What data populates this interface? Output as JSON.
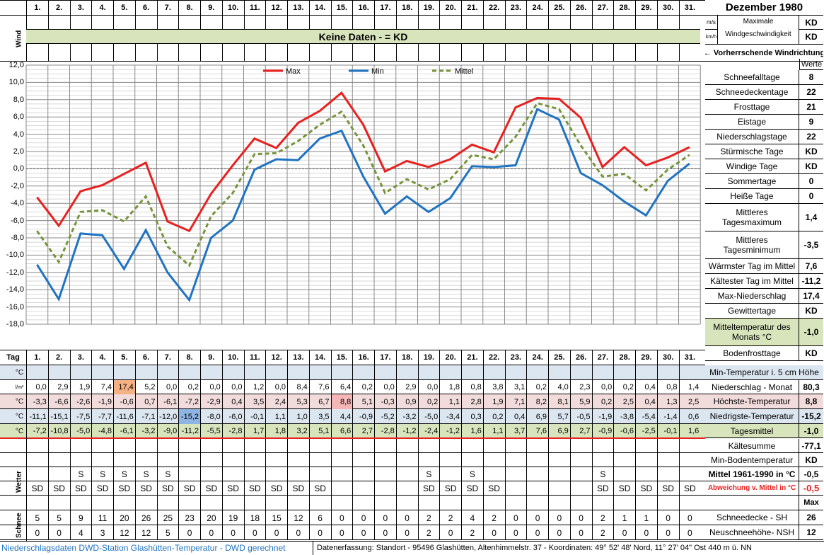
{
  "title": "Dezember 1980",
  "days": [
    "1.",
    "2.",
    "3.",
    "4.",
    "5.",
    "6.",
    "7.",
    "8.",
    "9.",
    "10.",
    "11.",
    "12.",
    "13.",
    "14.",
    "15.",
    "16.",
    "17.",
    "18.",
    "19.",
    "20.",
    "21.",
    "22.",
    "23.",
    "24.",
    "25.",
    "26.",
    "27.",
    "28.",
    "29.",
    "30.",
    "31."
  ],
  "wind": {
    "label": "Wind",
    "banner": "Keine Daten -  = KD",
    "unit_ms": "m/s",
    "unit_kmh": "km/h",
    "max_label_1": "Maximale",
    "max_label_2": "Windgeschwindigkeit",
    "val_ms": "KD",
    "val_kmh": "KD",
    "direction": "← Vorherrschende Windrichtung"
  },
  "tag_label": "Tag",
  "werte_label": "Werte",
  "chart_data": {
    "type": "line",
    "x": [
      1,
      2,
      3,
      4,
      5,
      6,
      7,
      8,
      9,
      10,
      11,
      12,
      13,
      14,
      15,
      16,
      17,
      18,
      19,
      20,
      21,
      22,
      23,
      24,
      25,
      26,
      27,
      28,
      29,
      30,
      31
    ],
    "ylim": [
      -18,
      12
    ],
    "yticks": [
      "12,0",
      "10,0",
      "8,0",
      "6,0",
      "4,0",
      "2,0",
      "0,0",
      "-2,0",
      "-4,0",
      "-6,0",
      "-8,0",
      "-10,0",
      "-12,0",
      "-14,0",
      "-16,0",
      "-18,0"
    ],
    "series": [
      {
        "name": "Max",
        "color": "#e8201e",
        "dash": "",
        "values": [
          -3.3,
          -6.6,
          -2.6,
          -1.9,
          -0.6,
          0.7,
          -6.1,
          -7.2,
          -2.9,
          0.4,
          3.5,
          2.4,
          5.3,
          6.7,
          8.8,
          5.1,
          -0.3,
          0.9,
          0.2,
          1.1,
          2.8,
          1.9,
          7.1,
          8.2,
          8.1,
          5.9,
          0.2,
          2.5,
          0.4,
          1.3,
          2.5
        ]
      },
      {
        "name": "Min",
        "color": "#1f73c2",
        "dash": "",
        "values": [
          -11.1,
          -15.1,
          -7.5,
          -7.7,
          -11.6,
          -7.1,
          -12.0,
          -15.2,
          -8.0,
          -6.0,
          -0.1,
          1.1,
          1.0,
          3.5,
          4.4,
          -0.9,
          -5.2,
          -3.2,
          -5.0,
          -3.4,
          0.3,
          0.2,
          0.4,
          6.9,
          5.7,
          -0.5,
          -1.9,
          -3.8,
          -5.4,
          -1.4,
          0.6
        ]
      },
      {
        "name": "Mittel",
        "color": "#77943a",
        "dash": "6,4",
        "values": [
          -7.2,
          -10.8,
          -5.0,
          -4.8,
          -6.1,
          -3.2,
          -9.0,
          -11.2,
          -5.5,
          -2.8,
          1.7,
          1.8,
          3.2,
          5.1,
          6.6,
          2.7,
          -2.8,
          -1.2,
          -2.4,
          -1.2,
          1.6,
          1.1,
          3.7,
          7.6,
          6.9,
          2.7,
          -0.9,
          -0.6,
          -2.5,
          -0.1,
          1.6
        ]
      }
    ]
  },
  "rows": {
    "min5": {
      "unit": "°C",
      "values": [
        "",
        "",
        "",
        "",
        "",
        "",
        "",
        "",
        "",
        "",
        "",
        "",
        "",
        "",
        "",
        "",
        "",
        "",
        "",
        "",
        "",
        "",
        "",
        "",
        "",
        "",
        "",
        "",
        "",
        "",
        ""
      ]
    },
    "precip": {
      "unit": "l/m²",
      "values": [
        "0,0",
        "2,9",
        "1,9",
        "7,4",
        "17,4",
        "5,2",
        "0,0",
        "0,2",
        "0,0",
        "0,0",
        "1,2",
        "0,0",
        "8,4",
        "7,6",
        "6,4",
        "0,2",
        "0,0",
        "2,9",
        "0,0",
        "1,8",
        "0,8",
        "3,8",
        "3,1",
        "0,2",
        "4,0",
        "2,3",
        "0,0",
        "0,2",
        "0,4",
        "0,8",
        "1,4"
      ]
    },
    "max": {
      "unit": "°C",
      "values": [
        "-3,3",
        "-6,6",
        "-2,6",
        "-1,9",
        "-0,6",
        "0,7",
        "-6,1",
        "-7,2",
        "-2,9",
        "0,4",
        "3,5",
        "2,4",
        "5,3",
        "6,7",
        "8,8",
        "5,1",
        "-0,3",
        "0,9",
        "0,2",
        "1,1",
        "2,8",
        "1,9",
        "7,1",
        "8,2",
        "8,1",
        "5,9",
        "0,2",
        "2,5",
        "0,4",
        "1,3",
        "2,5"
      ]
    },
    "min": {
      "unit": "°C",
      "values": [
        "-11,1",
        "-15,1",
        "-7,5",
        "-7,7",
        "-11,6",
        "-7,1",
        "-12,0",
        "-15,2",
        "-8,0",
        "-6,0",
        "-0,1",
        "1,1",
        "1,0",
        "3,5",
        "4,4",
        "-0,9",
        "-5,2",
        "-3,2",
        "-5,0",
        "-3,4",
        "0,3",
        "0,2",
        "0,4",
        "6,9",
        "5,7",
        "-0,5",
        "-1,9",
        "-3,8",
        "-5,4",
        "-1,4",
        "0,6"
      ]
    },
    "mean": {
      "unit": "°C",
      "values": [
        "-7,2",
        "-10,8",
        "-5,0",
        "-4,8",
        "-6,1",
        "-3,2",
        "-9,0",
        "-11,2",
        "-5,5",
        "-2,8",
        "1,7",
        "1,8",
        "3,2",
        "5,1",
        "6,6",
        "2,7",
        "-2,8",
        "-1,2",
        "-2,4",
        "-1,2",
        "1,6",
        "1,1",
        "3,7",
        "7,6",
        "6,9",
        "2,7",
        "-0,9",
        "-0,6",
        "-2,5",
        "-0,1",
        "1,6"
      ]
    }
  },
  "wetter": {
    "label": "Wetter",
    "s": [
      "",
      "",
      "S",
      "S",
      "S",
      "S",
      "S",
      "",
      "",
      "",
      "",
      "",
      "",
      "",
      "",
      "",
      "",
      "",
      "S",
      "",
      "S",
      "",
      "",
      "",
      "",
      "",
      "S",
      "",
      "",
      "",
      ""
    ],
    "sd": [
      "SD",
      "SD",
      "SD",
      "SD",
      "SD",
      "SD",
      "SD",
      "SD",
      "SD",
      "SD",
      "SD",
      "SD",
      "SD",
      "SD",
      "",
      "",
      "",
      "",
      "SD",
      "SD",
      "SD",
      "SD",
      "",
      "",
      "",
      "",
      "SD",
      "SD",
      "SD",
      "SD",
      "SD"
    ]
  },
  "schnee": {
    "label": "Schnee",
    "sh": [
      "5",
      "5",
      "9",
      "11",
      "20",
      "26",
      "25",
      "23",
      "20",
      "19",
      "18",
      "15",
      "12",
      "6",
      "0",
      "0",
      "0",
      "0",
      "2",
      "2",
      "4",
      "2",
      "0",
      "0",
      "0",
      "0",
      "2",
      "1",
      "1",
      "0",
      "0"
    ],
    "nsh": [
      "0",
      "0",
      "4",
      "3",
      "12",
      "12",
      "5",
      "0",
      "0",
      "0",
      "0",
      "0",
      "0",
      "0",
      "0",
      "0",
      "0",
      "0",
      "2",
      "0",
      "2",
      "0",
      "0",
      "0",
      "0",
      "0",
      "2",
      "0",
      "0",
      "0",
      "0"
    ]
  },
  "stats": [
    {
      "label": "Schneefalltage",
      "value": "8"
    },
    {
      "label": "Schneedeckentage",
      "value": "22"
    },
    {
      "label": "Frosttage",
      "value": "21"
    },
    {
      "label": "Eistage",
      "value": "9"
    },
    {
      "label": "Niederschlagstage",
      "value": "22"
    },
    {
      "label": "Stürmische Tage",
      "value": "KD"
    },
    {
      "label": "Windige Tage",
      "value": "KD"
    },
    {
      "label": "Sommertage",
      "value": "0"
    },
    {
      "label": "Heiße Tage",
      "value": "0"
    },
    {
      "label": "Mittleres Tagesmaximum",
      "value": "1,4"
    },
    {
      "label": "Mittleres Tagesminimum",
      "value": "-3,5"
    },
    {
      "label": "Wärmster Tag im Mittel",
      "value": "7,6"
    },
    {
      "label": "Kältester Tag im Mittel",
      "value": "-11,2"
    },
    {
      "label": "Max-Niederschlag",
      "value": "17,4"
    },
    {
      "label": "Gewittertage",
      "value": "KD"
    },
    {
      "label": "Mitteltemperatur des Monats °C",
      "value": "-1,0"
    },
    {
      "label": "Bodenfrosttage",
      "value": "KD"
    }
  ],
  "summary": [
    {
      "label": "Min-Temperatur i. 5 cm Höhe",
      "value": ""
    },
    {
      "label": "Niederschlag - Monat",
      "value": "80,3"
    },
    {
      "label": "Höchste-Temperatur",
      "value": "8,8"
    },
    {
      "label": "Niedrigste-Temperatur",
      "value": "-15,2"
    },
    {
      "label": "Tagesmittel",
      "value": "-1,0"
    },
    {
      "label": "Kältesumme",
      "value": "-77,1"
    },
    {
      "label": "Min-Bodentemperatur",
      "value": "KD"
    },
    {
      "label": "Mittel 1961-1990 in °C",
      "value": "-0,5"
    },
    {
      "label": "Abweichung v. Mittel in °C",
      "value": "-0,5"
    },
    {
      "label": "",
      "value": "Max"
    },
    {
      "label": "Schneedecke -  SH",
      "value": "26"
    },
    {
      "label": "Neuschneehöhe- NSH",
      "value": "12"
    }
  ],
  "footer": {
    "left": "Niederschlagsdaten DWD-Station Glashütten-Temperatur -  DWD gerechnet",
    "right": "Datenerfassung: Standort -  95496  Glashütten, Altenhimmelstr. 37 - Koordinaten:  49° 52' 48' Nord,   11° 27' 04\" Ost   440 m ü. NN"
  }
}
